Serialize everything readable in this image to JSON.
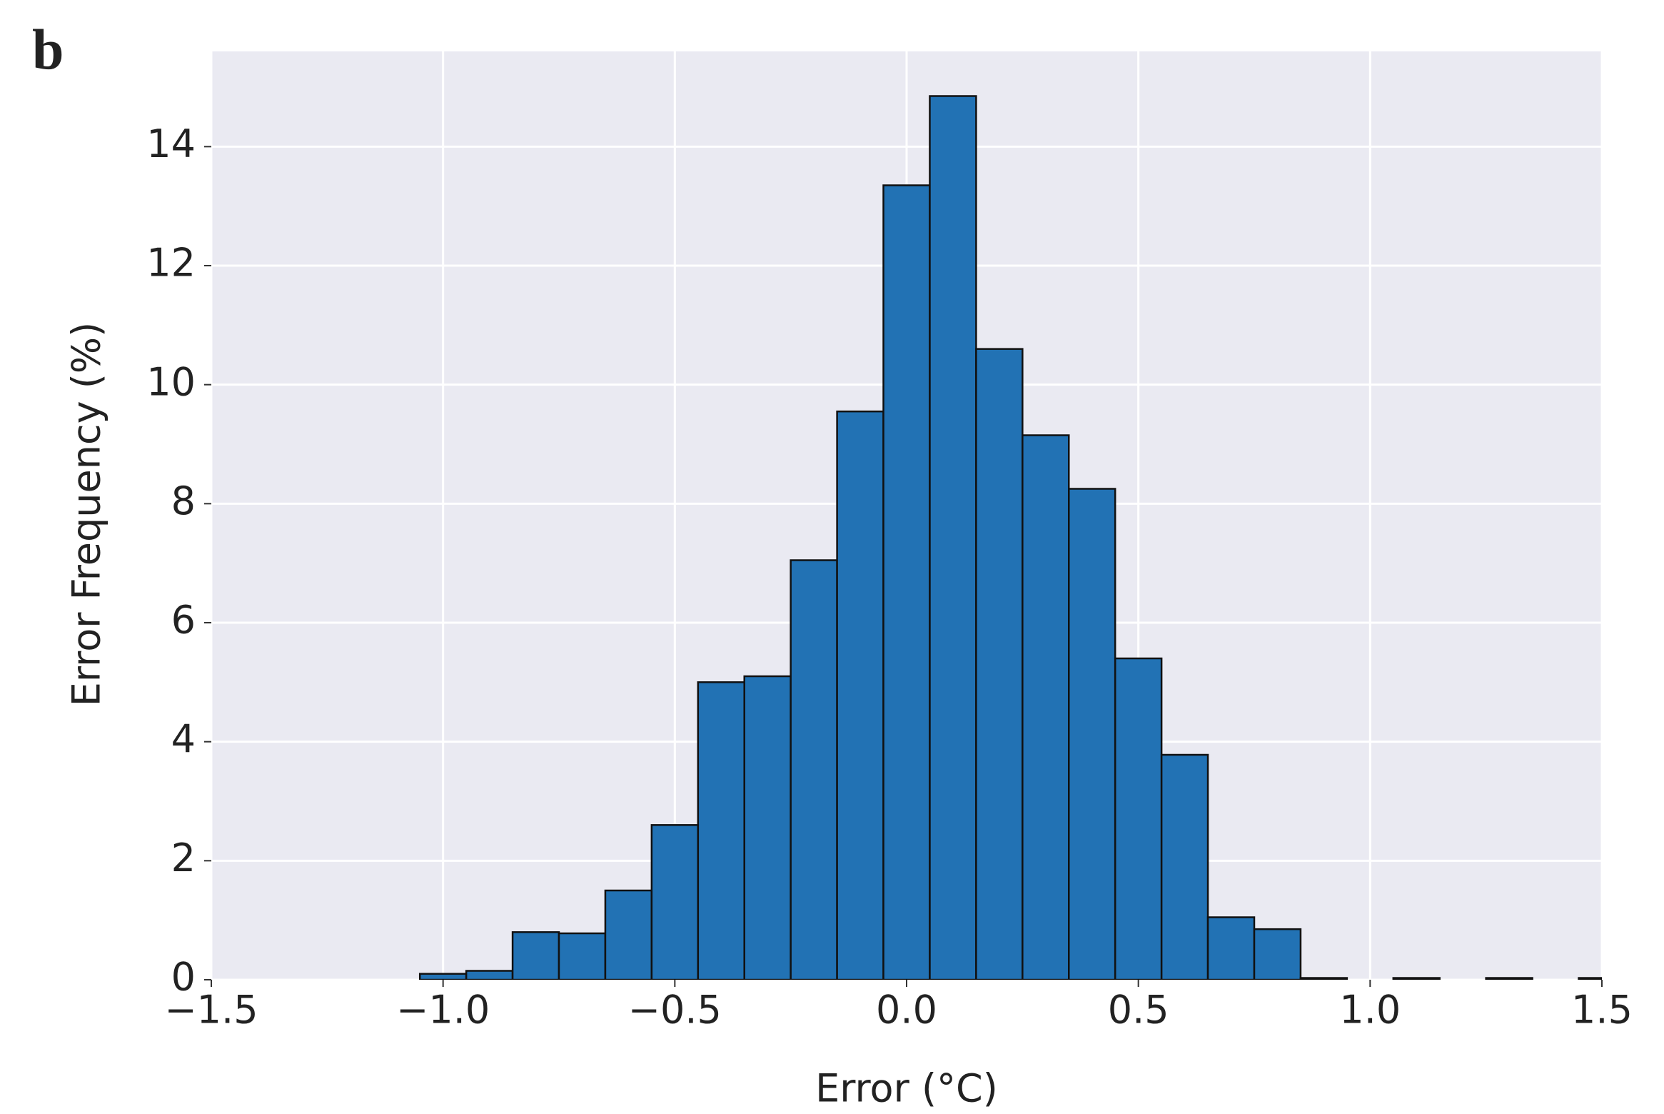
{
  "chart_data": {
    "type": "histogram",
    "panel_label": "b",
    "x_label": "Error (°C)",
    "y_label": "Error Frequency (%)",
    "bins": [
      -1.05,
      -0.95,
      -0.85,
      -0.75,
      -0.65,
      -0.55,
      -0.45,
      -0.35,
      -0.25,
      -0.15,
      -0.05,
      0.05,
      0.15,
      0.25,
      0.35,
      0.45,
      0.55,
      0.65,
      0.75,
      0.85,
      0.95,
      1.05,
      1.15,
      1.25,
      1.35,
      1.45,
      1.55
    ],
    "values": [
      0.1,
      0.15,
      0.8,
      0.78,
      1.5,
      2.6,
      5.0,
      5.1,
      7.05,
      9.55,
      13.35,
      14.85,
      10.6,
      9.15,
      8.25,
      5.4,
      3.78,
      1.05,
      0.85,
      0.03,
      0,
      0.03,
      0,
      0.03,
      0,
      0.03
    ],
    "color": "#2272b4",
    "edgecolor": "#111111",
    "xlim": [
      -1.5,
      1.5
    ],
    "xticks": [
      {
        "value": -1.5,
        "label": "−1.5"
      },
      {
        "value": -1.0,
        "label": "−1.0"
      },
      {
        "value": -0.5,
        "label": "−0.5"
      },
      {
        "value": 0.0,
        "label": "0.0"
      },
      0.5,
      {
        "value": 1.0,
        "label": "1.0"
      },
      1.5
    ],
    "ylim": [
      0,
      15.6
    ],
    "yticks": [
      0,
      2,
      4,
      6,
      8,
      10,
      12,
      14
    ],
    "grid": true
  }
}
